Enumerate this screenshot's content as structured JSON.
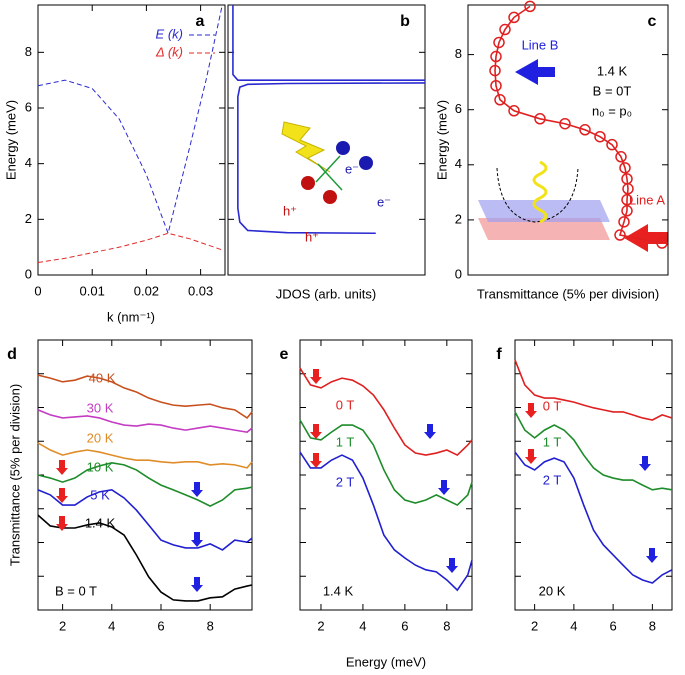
{
  "chart_data": [
    {
      "type": "line",
      "label": "a",
      "xlabel": "k (nm⁻¹)",
      "ylabel": "Energy (meV)",
      "x": [
        0,
        0.005,
        0.01,
        0.015,
        0.02,
        0.024,
        0.028,
        0.031,
        0.034
      ],
      "series": [
        {
          "name": "E (k)",
          "color": "#2a2ad0",
          "linestyle": "dashed",
          "values": [
            6.8,
            7.0,
            6.7,
            5.6,
            3.6,
            1.5,
            4.6,
            7.0,
            9.7
          ]
        },
        {
          "name": "Δ (k)",
          "color": "#e02a2a",
          "linestyle": "dashed",
          "values": [
            0.45,
            0.6,
            0.8,
            1.0,
            1.25,
            1.5,
            1.3,
            1.1,
            0.9
          ]
        }
      ],
      "xlim": [
        0,
        0.0345
      ],
      "ylim": [
        0,
        9.7
      ],
      "xticks": [
        0,
        0.01,
        0.02,
        0.03
      ],
      "yticks": [
        0,
        2,
        4,
        6,
        8
      ],
      "legend": "upper right"
    },
    {
      "type": "line",
      "label": "b",
      "xlabel": "JDOS (arb. units)",
      "series": [
        {
          "color": "#2a2ad0",
          "x": [
            7.5,
            3,
            1,
            0.6,
            0.5,
            0.5,
            0.6,
            1,
            3,
            10
          ],
          "values": [
            1.5,
            1.52,
            1.6,
            1.9,
            2.4,
            6.4,
            6.75,
            6.85,
            6.88,
            6.9
          ]
        },
        {
          "color": "#2a2ad0",
          "x": [
            0.25,
            0.25,
            0.5,
            10
          ],
          "values": [
            9.7,
            7.2,
            7.0,
            7.0
          ]
        }
      ],
      "xlim": [
        0,
        10
      ],
      "ylim": [
        0,
        9.7
      ],
      "yticks": [
        0,
        2,
        4,
        6,
        8
      ],
      "ytick_labels": false,
      "annotations": [
        "e⁻",
        "e⁻",
        "h⁺",
        "h⁺"
      ]
    },
    {
      "type": "line",
      "label": "c",
      "xlabel": "Transmittance (5% per division)",
      "ylabel": "Energy (meV)",
      "series": [
        {
          "color": "#e02020",
          "marker": "circle",
          "x": [
            9.7,
            7.6,
            7.8,
            7.95,
            7.95,
            8.0,
            7.95,
            7.85,
            7.65,
            7.2,
            6.6,
            5.85,
            4.85,
            3.6,
            2.3,
            1.6,
            1.4,
            1.35,
            1.4,
            1.55,
            1.85,
            2.3,
            3.1
          ],
          "values": [
            1.16,
            1.45,
            1.93,
            2.33,
            2.73,
            3.13,
            3.49,
            3.89,
            4.29,
            4.73,
            5.02,
            5.27,
            5.49,
            5.67,
            5.96,
            6.36,
            6.87,
            7.42,
            7.93,
            8.44,
            8.91,
            9.35,
            9.75
          ]
        }
      ],
      "xlim": [
        0,
        10
      ],
      "ylim": [
        0,
        9.8
      ],
      "yticks": [
        0,
        2,
        4,
        6,
        8
      ],
      "annotations": [
        "1.4 K",
        "B = 0T",
        "n₀ = p₀",
        "Line B",
        "Line A"
      ]
    },
    {
      "type": "line",
      "label": "d",
      "ylabel": "Transmittance (5% per division)",
      "x": [
        1,
        1.5,
        2,
        2.5,
        3,
        3.5,
        4,
        4.5,
        5,
        5.5,
        6,
        6.5,
        7,
        7.5,
        8,
        8.5,
        9,
        9.5,
        9.7
      ],
      "series": [
        {
          "name": "40 K",
          "color": "#c8501e",
          "values": [
            6.96,
            6.87,
            6.76,
            6.81,
            6.93,
            6.87,
            6.76,
            6.58,
            6.46,
            6.28,
            6.16,
            6.07,
            6.04,
            6.07,
            6.1,
            5.99,
            5.93,
            5.69,
            5.87
          ]
        },
        {
          "name": "30 K",
          "color": "#c43cc4",
          "values": [
            5.93,
            5.78,
            5.69,
            5.72,
            5.75,
            5.69,
            5.57,
            5.48,
            5.45,
            5.51,
            5.48,
            5.39,
            5.33,
            5.39,
            5.45,
            5.39,
            5.33,
            5.27,
            5.39
          ]
        },
        {
          "name": "20 K",
          "color": "#e08c28",
          "values": [
            4.95,
            4.74,
            4.59,
            4.68,
            4.74,
            4.68,
            4.59,
            4.5,
            4.44,
            4.44,
            4.39,
            4.36,
            4.39,
            4.39,
            4.3,
            4.33,
            4.3,
            4.21,
            4.39
          ]
        },
        {
          "name": "10 K",
          "color": "#1e8c2a",
          "values": [
            4.0,
            3.91,
            3.79,
            3.91,
            4.15,
            4.27,
            4.36,
            4.3,
            4.15,
            3.91,
            3.7,
            3.56,
            3.41,
            3.26,
            3.08,
            3.26,
            3.56,
            3.61,
            3.64
          ]
        },
        {
          "name": "5 K",
          "color": "#2020d0",
          "values": [
            3.56,
            3.41,
            3.11,
            3.11,
            3.35,
            3.5,
            3.56,
            3.32,
            2.96,
            2.52,
            2.07,
            1.93,
            1.84,
            1.84,
            1.96,
            1.78,
            2.07,
            2.01,
            2.13
          ]
        },
        {
          "name": "1.4 K",
          "color": "#000000",
          "values": [
            2.81,
            2.49,
            2.43,
            2.43,
            2.52,
            2.58,
            2.46,
            2.22,
            1.63,
            0.98,
            0.53,
            0.3,
            0.27,
            0.27,
            0.36,
            0.39,
            0.62,
            0.71,
            0.74
          ]
        }
      ],
      "xlim": [
        1,
        9.7
      ],
      "ylim": [
        0,
        8
      ],
      "xticks": [
        2,
        4,
        6,
        8
      ],
      "yticks": [
        0,
        1,
        2,
        3,
        4,
        5,
        6,
        7,
        8
      ],
      "ytick_labels": false,
      "legend": "inline",
      "annotations": [
        "B = 0 T"
      ]
    },
    {
      "type": "line",
      "label": "e",
      "xlabel": "Energy (meV)",
      "x": [
        1,
        1.5,
        2,
        2.5,
        3,
        3.5,
        4,
        4.5,
        5,
        5.5,
        6,
        6.5,
        7,
        7.5,
        8,
        8.5,
        9,
        9.2
      ],
      "series": [
        {
          "name": "0 T",
          "color": "#e02020",
          "values": [
            7.17,
            6.67,
            6.58,
            6.76,
            6.87,
            6.81,
            6.64,
            6.37,
            5.93,
            5.39,
            4.89,
            4.65,
            4.59,
            4.65,
            4.74,
            4.59,
            4.89,
            5.04
          ]
        },
        {
          "name": "1 T",
          "color": "#1e8c2a",
          "values": [
            5.63,
            5.1,
            5.04,
            5.27,
            5.48,
            5.48,
            5.33,
            4.89,
            4.15,
            3.56,
            3.26,
            3.17,
            3.26,
            3.41,
            3.26,
            3.11,
            3.41,
            3.79
          ]
        },
        {
          "name": "2 T",
          "color": "#2020d0",
          "values": [
            4.68,
            4.21,
            4.21,
            4.44,
            4.59,
            4.44,
            3.91,
            3.11,
            2.22,
            1.78,
            1.54,
            1.33,
            1.19,
            1.13,
            0.89,
            0.59,
            1.04,
            1.48
          ]
        }
      ],
      "xlim": [
        1,
        9.2
      ],
      "ylim": [
        0,
        8
      ],
      "xticks": [
        2,
        4,
        6,
        8
      ],
      "yticks": [
        0,
        1,
        2,
        3,
        4,
        5,
        6,
        7,
        8
      ],
      "ytick_labels": false,
      "legend": "inline",
      "annotations": [
        "1.4 K"
      ]
    },
    {
      "type": "line",
      "label": "f",
      "x": [
        1,
        1.5,
        2,
        2.5,
        3,
        3.5,
        4,
        4.5,
        5,
        5.5,
        6,
        6.5,
        7,
        7.5,
        8,
        8.5,
        9
      ],
      "series": [
        {
          "name": "0 T",
          "color": "#e02020",
          "values": [
            7.41,
            6.67,
            6.37,
            6.28,
            6.28,
            6.22,
            6.16,
            6.07,
            5.99,
            5.93,
            5.87,
            5.87,
            5.78,
            5.69,
            5.63,
            5.78,
            5.69
          ]
        },
        {
          "name": "1 T",
          "color": "#1e8c2a",
          "values": [
            5.87,
            5.33,
            5.1,
            5.33,
            5.48,
            5.33,
            5.04,
            4.59,
            4.21,
            4.0,
            3.91,
            3.85,
            3.85,
            3.7,
            3.56,
            3.61,
            3.56
          ]
        },
        {
          "name": "2 T",
          "color": "#2020d0",
          "values": [
            4.68,
            4.3,
            4.15,
            4.39,
            4.5,
            4.39,
            3.91,
            3.11,
            2.37,
            1.93,
            1.63,
            1.33,
            1.04,
            0.89,
            0.8,
            1.04,
            1.19
          ]
        }
      ],
      "xlim": [
        1,
        9
      ],
      "ylim": [
        0,
        8
      ],
      "xticks": [
        2,
        4,
        6,
        8
      ],
      "yticks": [
        0,
        1,
        2,
        3,
        4,
        5,
        6,
        7,
        8
      ],
      "ytick_labels": false,
      "legend": "inline",
      "annotations": [
        "20 K"
      ]
    }
  ]
}
